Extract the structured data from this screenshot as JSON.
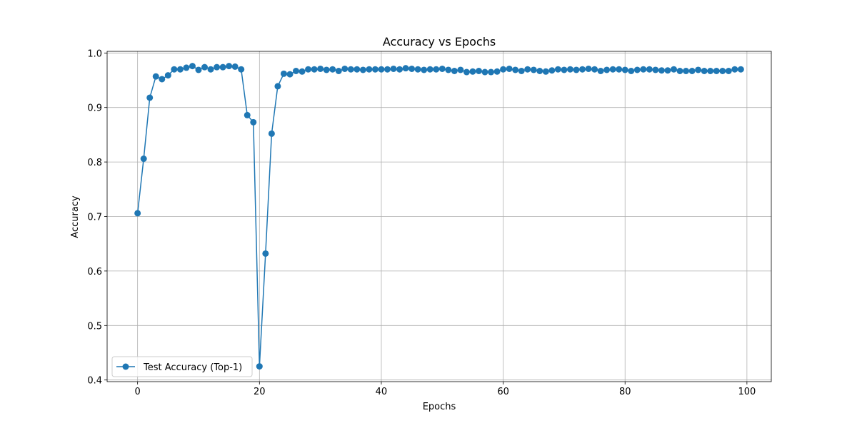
{
  "chart_data": {
    "type": "line",
    "title": "Accuracy vs Epochs",
    "xlabel": "Epochs",
    "ylabel": "Accuracy",
    "xlim": [
      -5,
      104
    ],
    "ylim": [
      0.397,
      1.003
    ],
    "xticks": [
      0,
      20,
      40,
      60,
      80,
      100
    ],
    "yticks": [
      0.4,
      0.5,
      0.6,
      0.7,
      0.8,
      0.9,
      1.0
    ],
    "xtick_labels": [
      "0",
      "20",
      "40",
      "60",
      "80",
      "100"
    ],
    "ytick_labels": [
      "0.4",
      "0.5",
      "0.6",
      "0.7",
      "0.8",
      "0.9",
      "1.0"
    ],
    "grid": true,
    "legend_position": "lower-left",
    "series": [
      {
        "name": "Test Accuracy (Top-1)",
        "color": "#1f77b4",
        "marker": "circle",
        "x": [
          0,
          1,
          2,
          3,
          4,
          5,
          6,
          7,
          8,
          9,
          10,
          11,
          12,
          13,
          14,
          15,
          16,
          17,
          18,
          19,
          20,
          21,
          22,
          23,
          24,
          25,
          26,
          27,
          28,
          29,
          30,
          31,
          32,
          33,
          34,
          35,
          36,
          37,
          38,
          39,
          40,
          41,
          42,
          43,
          44,
          45,
          46,
          47,
          48,
          49,
          50,
          51,
          52,
          53,
          54,
          55,
          56,
          57,
          58,
          59,
          60,
          61,
          62,
          63,
          64,
          65,
          66,
          67,
          68,
          69,
          70,
          71,
          72,
          73,
          74,
          75,
          76,
          77,
          78,
          79,
          80,
          81,
          82,
          83,
          84,
          85,
          86,
          87,
          88,
          89,
          90,
          91,
          92,
          93,
          94,
          95,
          96,
          97,
          98,
          99
        ],
        "y": [
          0.706,
          0.806,
          0.918,
          0.957,
          0.952,
          0.959,
          0.97,
          0.97,
          0.973,
          0.976,
          0.969,
          0.974,
          0.97,
          0.974,
          0.974,
          0.976,
          0.975,
          0.97,
          0.886,
          0.873,
          0.425,
          0.632,
          0.852,
          0.939,
          0.962,
          0.961,
          0.967,
          0.966,
          0.97,
          0.97,
          0.971,
          0.969,
          0.97,
          0.967,
          0.971,
          0.97,
          0.97,
          0.969,
          0.97,
          0.97,
          0.97,
          0.97,
          0.971,
          0.97,
          0.972,
          0.971,
          0.97,
          0.969,
          0.97,
          0.97,
          0.971,
          0.969,
          0.967,
          0.969,
          0.965,
          0.966,
          0.967,
          0.965,
          0.965,
          0.966,
          0.97,
          0.971,
          0.969,
          0.967,
          0.97,
          0.969,
          0.967,
          0.966,
          0.968,
          0.97,
          0.969,
          0.97,
          0.969,
          0.97,
          0.971,
          0.97,
          0.967,
          0.969,
          0.97,
          0.97,
          0.969,
          0.967,
          0.969,
          0.97,
          0.97,
          0.969,
          0.968,
          0.968,
          0.97,
          0.967,
          0.967,
          0.967,
          0.969,
          0.967,
          0.967,
          0.967,
          0.967,
          0.967,
          0.97,
          0.97
        ]
      }
    ]
  }
}
